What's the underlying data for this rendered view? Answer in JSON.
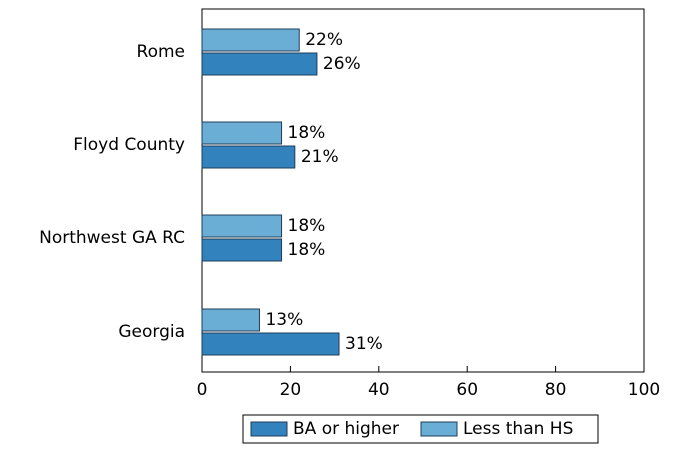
{
  "chart_data": {
    "type": "bar",
    "orientation": "horizontal",
    "title": "",
    "xlabel": "",
    "ylabel": "",
    "categories": [
      "Rome",
      "Floyd County",
      "Northwest GA RC",
      "Georgia"
    ],
    "series": [
      {
        "name": "Less than HS",
        "color": "#6aaed6",
        "values": [
          22,
          18,
          18,
          13
        ],
        "labels": [
          "22%",
          "18%",
          "18%",
          "13%"
        ]
      },
      {
        "name": "BA or higher",
        "color": "#3182bd",
        "values": [
          26,
          21,
          18,
          31
        ],
        "labels": [
          "26%",
          "21%",
          "18%",
          "31%"
        ]
      }
    ],
    "xlim": [
      0,
      100
    ],
    "xticks": [
      0,
      20,
      40,
      60,
      80,
      100
    ],
    "xtick_labels": [
      "0",
      "20",
      "40",
      "60",
      "80",
      "100"
    ],
    "grid": false,
    "legend": {
      "placement": "bottom-center",
      "entries": [
        "BA or higher",
        "Less than HS"
      ]
    }
  }
}
